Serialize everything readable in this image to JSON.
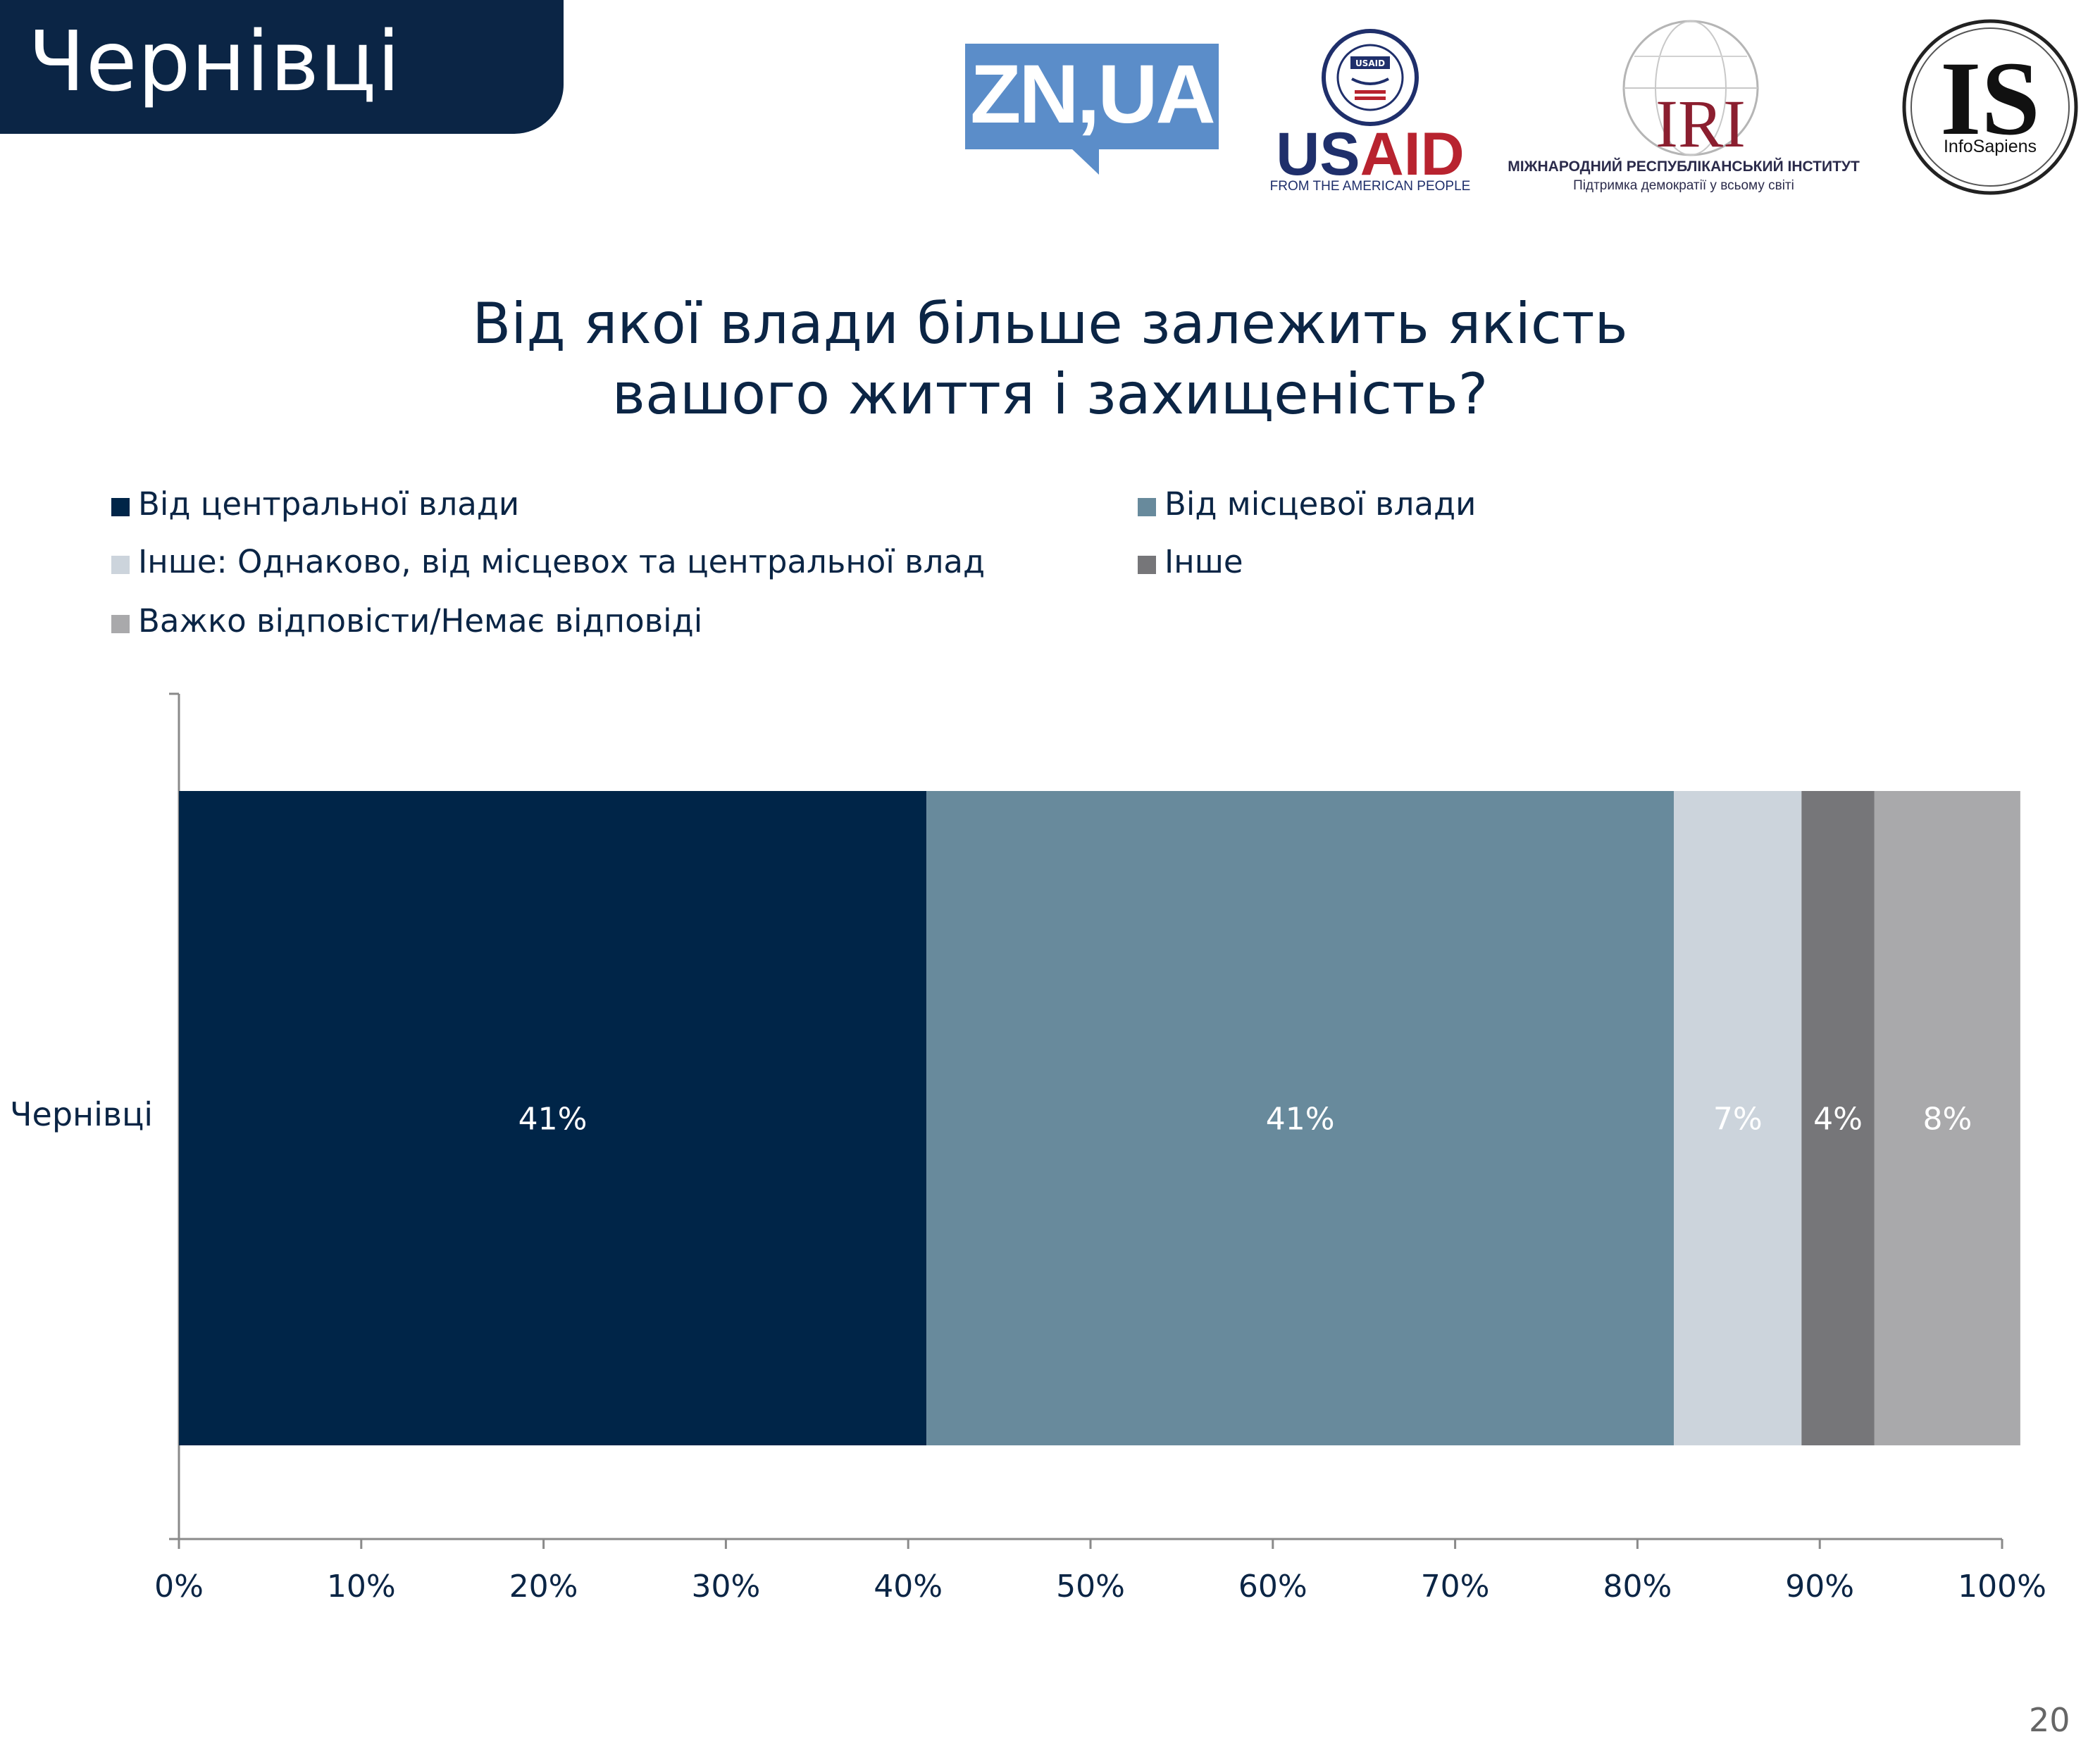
{
  "header": {
    "title": "Чернівці"
  },
  "logos": {
    "zn": "ZN,UA",
    "usaid_word_a": "US",
    "usaid_word_b": "AID",
    "usaid_sub": "FROM THE AMERICAN PEOPLE",
    "usaid_seal_text": "USAID",
    "iri_word": "IRI",
    "iri_line1": "МІЖНАРОДНИЙ РЕСПУБЛІКАНСЬКИЙ ІНСТИТУТ",
    "iri_line2": "Підтримка демократії у всьому світі",
    "is_word": "IS",
    "is_sub": "InfoSapiens"
  },
  "page_number": "20",
  "chart_data": {
    "type": "bar",
    "orientation": "horizontal",
    "stacked": true,
    "title_line1": "Від якої влади більше залежить якість",
    "title_line2": "вашого життя і захищеність?",
    "categories": [
      "Чернівці"
    ],
    "series": [
      {
        "name": "Від центральної влади",
        "values": [
          41
        ],
        "label": "41%",
        "color": "#002548"
      },
      {
        "name": "Від місцевої влади",
        "values": [
          41
        ],
        "label": "41%",
        "color": "#688a9c"
      },
      {
        "name": "Інше: Однаково, від місцевох та центральної влад",
        "values": [
          7
        ],
        "label": "7%",
        "color": "#ccd4dc"
      },
      {
        "name": "Інше",
        "values": [
          4
        ],
        "label": "4%",
        "color": "#767679"
      },
      {
        "name": "Важко відповісти/Немає відповіді",
        "values": [
          8
        ],
        "label": "8%",
        "color": "#a9a9ab"
      }
    ],
    "xlim": [
      0,
      100
    ],
    "xticks": [
      "0%",
      "10%",
      "20%",
      "30%",
      "40%",
      "50%",
      "60%",
      "70%",
      "80%",
      "90%",
      "100%"
    ],
    "legend_position": "top",
    "grid": false
  }
}
